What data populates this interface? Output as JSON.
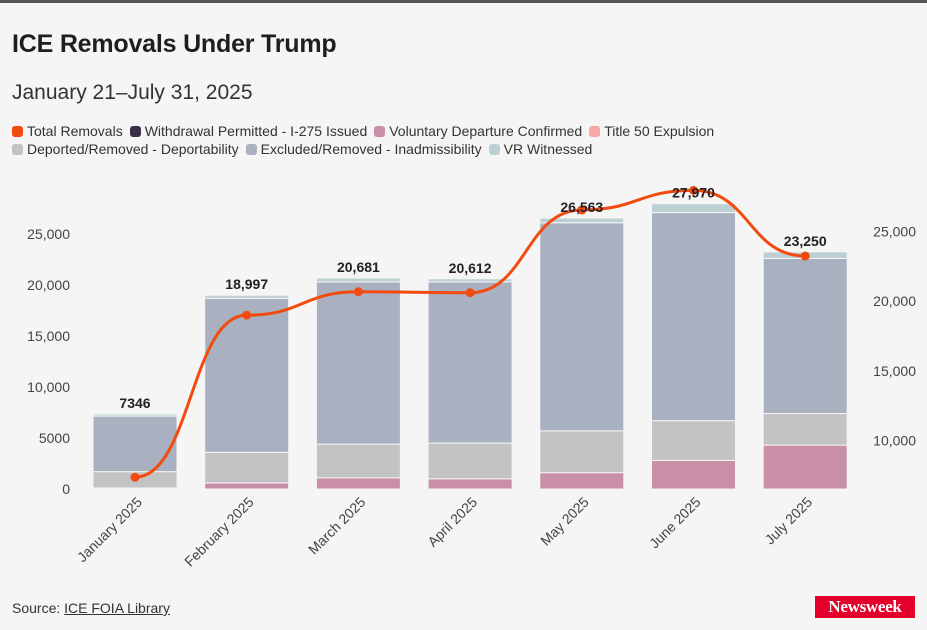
{
  "title": "ICE Removals Under Trump",
  "subtitle": "January 21–July 31, 2025",
  "legend": [
    {
      "label": "Total Removals",
      "color": "#f24a0f"
    },
    {
      "label": "Withdrawal Permitted - I-275 Issued",
      "color": "#3a3147"
    },
    {
      "label": "Voluntary Departure Confirmed",
      "color": "#c98ea8"
    },
    {
      "label": "Title 50 Expulsion",
      "color": "#f5aaa8"
    },
    {
      "label": "Deported/Removed - Deportability",
      "color": "#c3c3c3"
    },
    {
      "label": "Excluded/Removed - Inadmissibility",
      "color": "#a9b0bf"
    },
    {
      "label": "VR Witnessed",
      "color": "#bcd0d4"
    }
  ],
  "source_label": "Source:",
  "source_link": "ICE FOIA Library",
  "logo": "Newsweek",
  "chart_data": {
    "type": "bar",
    "stacked": true,
    "categories": [
      "January 2025",
      "February 2025",
      "March 2025",
      "April 2025",
      "May 2025",
      "June 2025",
      "July 2025"
    ],
    "left_axis": {
      "range": [
        0,
        30000
      ],
      "ticks": [
        "0",
        "5000",
        "10,000",
        "15,000",
        "20,000",
        "25,000"
      ],
      "tick_values": [
        0,
        5000,
        10000,
        15000,
        20000,
        25000
      ]
    },
    "right_axis": {
      "range": [
        6500,
        28500
      ],
      "ticks": [
        "10,000",
        "15,000",
        "20,000",
        "25,000"
      ],
      "tick_values": [
        10000,
        15000,
        20000,
        25000
      ]
    },
    "grid": false,
    "legend_position": "top",
    "series": [
      {
        "name": "Withdrawal Permitted - I-275 Issued",
        "color": "#3a3147",
        "values": [
          0,
          0,
          0,
          0,
          0,
          0,
          0
        ]
      },
      {
        "name": "Voluntary Departure Confirmed",
        "color": "#c98ea8",
        "values": [
          100,
          600,
          1100,
          1000,
          1600,
          2800,
          4300
        ]
      },
      {
        "name": "Title 50 Expulsion",
        "color": "#f5aaa8",
        "values": [
          0,
          0,
          0,
          0,
          0,
          0,
          0
        ]
      },
      {
        "name": "Deported/Removed - Deportability",
        "color": "#c3c3c3",
        "values": [
          1600,
          3000,
          3300,
          3500,
          4100,
          3900,
          3100
        ]
      },
      {
        "name": "Excluded/Removed - Inadmissibility",
        "color": "#a9b0bf",
        "values": [
          5450,
          15100,
          15900,
          15800,
          20400,
          20400,
          15200
        ]
      },
      {
        "name": "VR Witnessed",
        "color": "#bcd0d4",
        "values": [
          196,
          297,
          381,
          312,
          463,
          870,
          650
        ]
      }
    ],
    "line": {
      "name": "Total Removals",
      "color": "#f24a0f",
      "axis": "right",
      "values": [
        7346,
        18997,
        20681,
        20612,
        26563,
        27970,
        23250
      ],
      "labels": [
        "7346",
        "18,997",
        "20,681",
        "20,612",
        "26,563",
        "27,970",
        "23,250"
      ]
    }
  }
}
